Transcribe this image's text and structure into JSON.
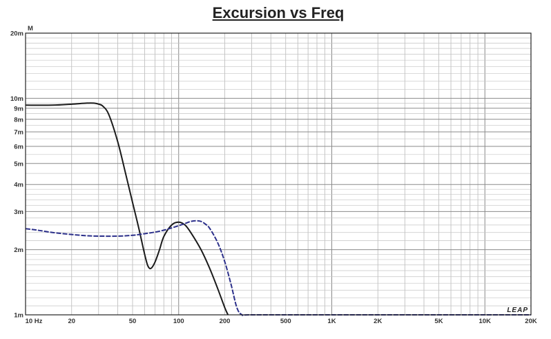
{
  "chart_data": {
    "type": "line",
    "title": "Excursion vs Freq",
    "y_unit": "M",
    "x_scale": "log",
    "y_scale": "log",
    "xlim": [
      10,
      20000
    ],
    "ylim": [
      0.001,
      0.02
    ],
    "grid": true,
    "x_tick_labels": [
      "10 Hz",
      "20",
      "50",
      "100",
      "200",
      "500",
      "1K",
      "2K",
      "5K",
      "10K",
      "20K"
    ],
    "x_tick_values": [
      10,
      20,
      50,
      100,
      200,
      500,
      1000,
      2000,
      5000,
      10000,
      20000
    ],
    "y_tick_labels": [
      "1m",
      "2m",
      "3m",
      "4m",
      "5m",
      "6m",
      "7m",
      "8m",
      "9m",
      "10m",
      "20m"
    ],
    "y_tick_values": [
      0.001,
      0.002,
      0.003,
      0.004,
      0.005,
      0.006,
      0.007,
      0.008,
      0.009,
      0.01,
      0.02
    ],
    "brand": "LEAP",
    "series": [
      {
        "color": "#1a1a1a",
        "style": "solid",
        "x": [
          10,
          15,
          20,
          25,
          28,
          30,
          32,
          35,
          40,
          45,
          50,
          55,
          60,
          63,
          66,
          70,
          75,
          80,
          90,
          100,
          110,
          120,
          140,
          160,
          180,
          200,
          210
        ],
        "y": [
          0.0093,
          0.0093,
          0.0094,
          0.0095,
          0.0095,
          0.0094,
          0.0092,
          0.0084,
          0.0063,
          0.0045,
          0.0033,
          0.0025,
          0.0019,
          0.00168,
          0.00164,
          0.00175,
          0.002,
          0.0023,
          0.0026,
          0.00268,
          0.0026,
          0.0024,
          0.002,
          0.00163,
          0.00132,
          0.00108,
          0.001
        ]
      },
      {
        "color": "#2b2f8a",
        "style": "dashed",
        "x": [
          10,
          12,
          15,
          20,
          25,
          30,
          40,
          50,
          60,
          70,
          80,
          90,
          100,
          110,
          120,
          130,
          140,
          150,
          160,
          180,
          200,
          220,
          240,
          260,
          300,
          1000,
          10000,
          20000
        ],
        "y": [
          0.0025,
          0.00246,
          0.0024,
          0.00235,
          0.00232,
          0.00231,
          0.00231,
          0.00233,
          0.00237,
          0.00241,
          0.00246,
          0.00252,
          0.00258,
          0.00264,
          0.0027,
          0.00272,
          0.0027,
          0.00262,
          0.0025,
          0.00215,
          0.00176,
          0.00138,
          0.00108,
          0.001,
          0.001,
          0.001,
          0.001,
          0.001
        ]
      }
    ]
  }
}
